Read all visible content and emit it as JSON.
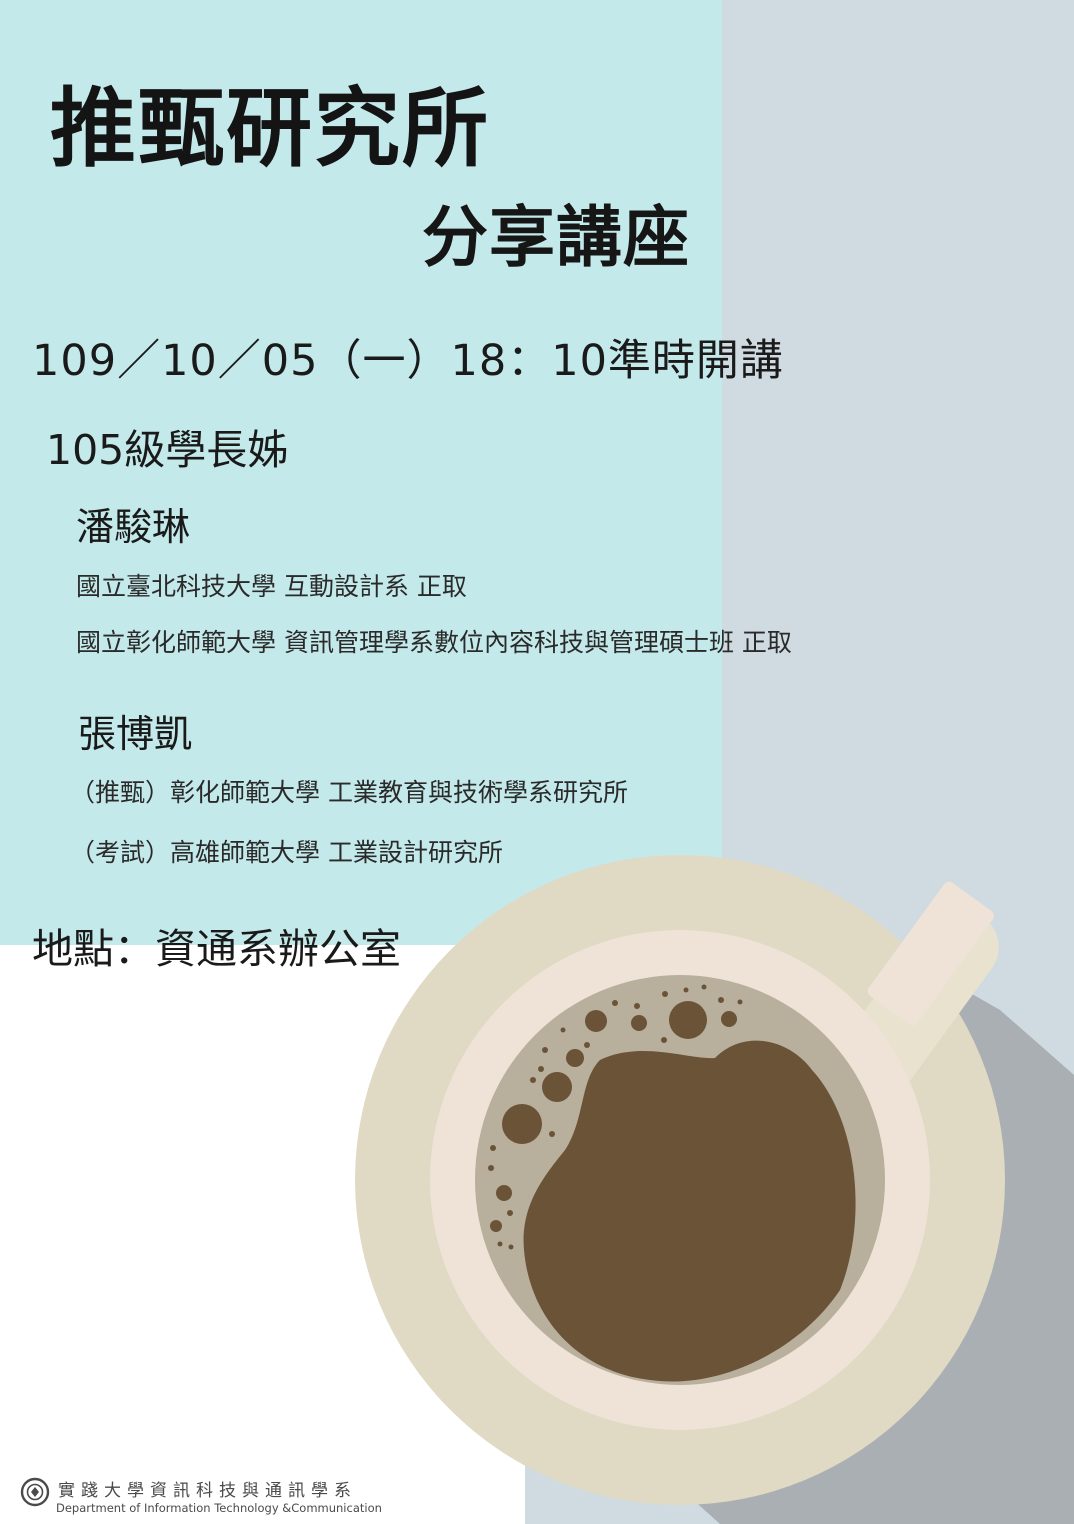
{
  "title": "推甄研究所",
  "subtitle": "分享講座",
  "datetime": "109／10／05（一）18：10準時開講",
  "grade": "105級學長姊",
  "speakers": [
    {
      "name": "潘駿琳",
      "details": [
        "國立臺北科技大學  互動設計系  正取",
        "國立彰化師範大學  資訊管理學系數位內容科技與管理碩士班  正取"
      ]
    },
    {
      "name": "張博凱",
      "details": [
        "（推甄）彰化師範大學  工業教育與技術學系研究所",
        "（考試）高雄師範大學  工業設計研究所"
      ]
    }
  ],
  "venue": "地點：資通系辦公室",
  "footer": {
    "dept_zh": "實踐大學資訊科技與通訊學系",
    "dept_en": "Department of Information Technology &Communication",
    "logo_icon": "university-seal-icon"
  },
  "colors": {
    "cyan_panel": "#c4e9ea",
    "gray_panel": "#cfdbe1",
    "saucer": "#e0dac4",
    "cup_rim": "#efe3d8",
    "crema": "#b8b09c",
    "coffee": "#6b5338",
    "shadow": "#a9afb3"
  }
}
